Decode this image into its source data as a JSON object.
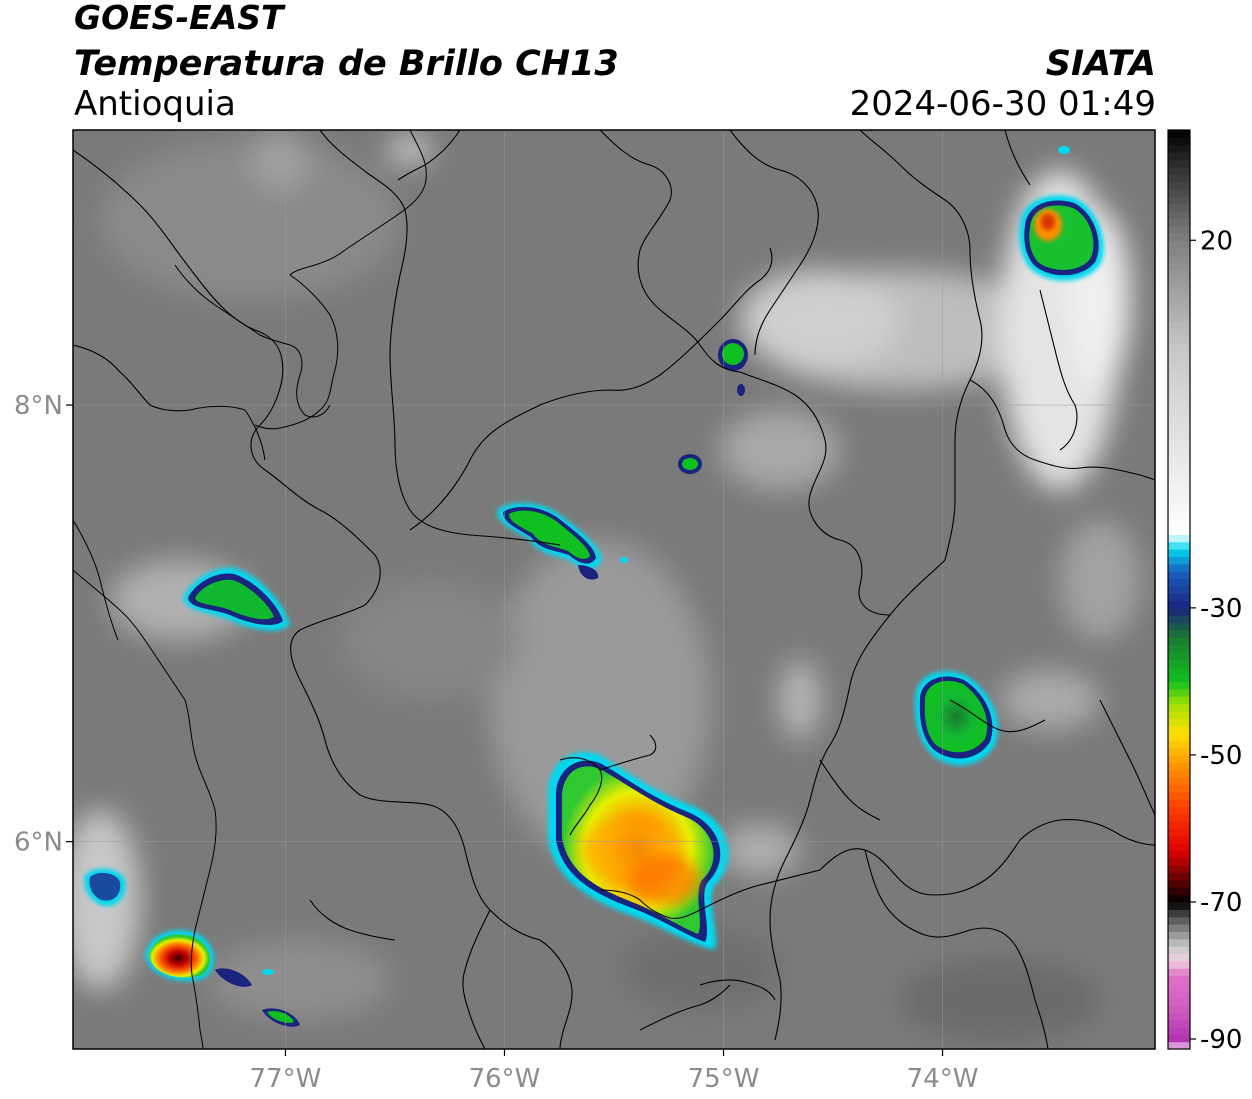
{
  "header": {
    "satellite": "GOES-EAST",
    "product": "Temperatura de Brillo CH13",
    "region": "Antioquia",
    "organization": "SIATA",
    "timestamp": "2024-06-30 01:49"
  },
  "map": {
    "lon_range": [
      -77.97,
      -73.03
    ],
    "lat_range": [
      5.05,
      9.26
    ],
    "lon_ticks": [
      {
        "value": -77,
        "label": "77°W"
      },
      {
        "value": -76,
        "label": "76°W"
      },
      {
        "value": -75,
        "label": "75°W"
      },
      {
        "value": -74,
        "label": "74°W"
      }
    ],
    "lat_ticks": [
      {
        "value": 8,
        "label": "8°N"
      },
      {
        "value": 6,
        "label": "6°N"
      }
    ]
  },
  "colorbar": {
    "range": [
      -90,
      35
    ],
    "ticks": [
      {
        "value": 20,
        "label": "20"
      },
      {
        "value": -30,
        "label": "-30"
      },
      {
        "value": -50,
        "label": "-50"
      },
      {
        "value": -70,
        "label": "-70"
      },
      {
        "value": -90,
        "label": "-90"
      }
    ],
    "colors": {
      "magenta": "#b030b0",
      "pink": "#e070c8",
      "black": "#000000",
      "red": "#e00000",
      "orange": "#ff8c00",
      "yellow": "#ffe000",
      "green": "#10c020",
      "darkgreen": "#1a7a30",
      "navy": "#1a237e",
      "cyan": "#00d8f0",
      "white": "#ffffff",
      "gray": "#808080"
    }
  },
  "features": [
    {
      "name": "Western storm near Pacific coast",
      "lon": -77.45,
      "lat": 5.45,
      "peak_temp": -68
    },
    {
      "name": "Central-south storm complex",
      "lon": -75.35,
      "lat": 5.9,
      "peak_temp": -55
    },
    {
      "name": "Eastern storm",
      "lon": -73.9,
      "lat": 6.55,
      "peak_temp": -38
    },
    {
      "name": "Northeast storm",
      "lon": -73.48,
      "lat": 8.6,
      "peak_temp": -55
    },
    {
      "name": "Urabá storm",
      "lon": -77.15,
      "lat": 7.0,
      "peak_temp": -38
    },
    {
      "name": "North-central cell",
      "lon": -75.7,
      "lat": 7.45,
      "peak_temp": -38
    }
  ]
}
